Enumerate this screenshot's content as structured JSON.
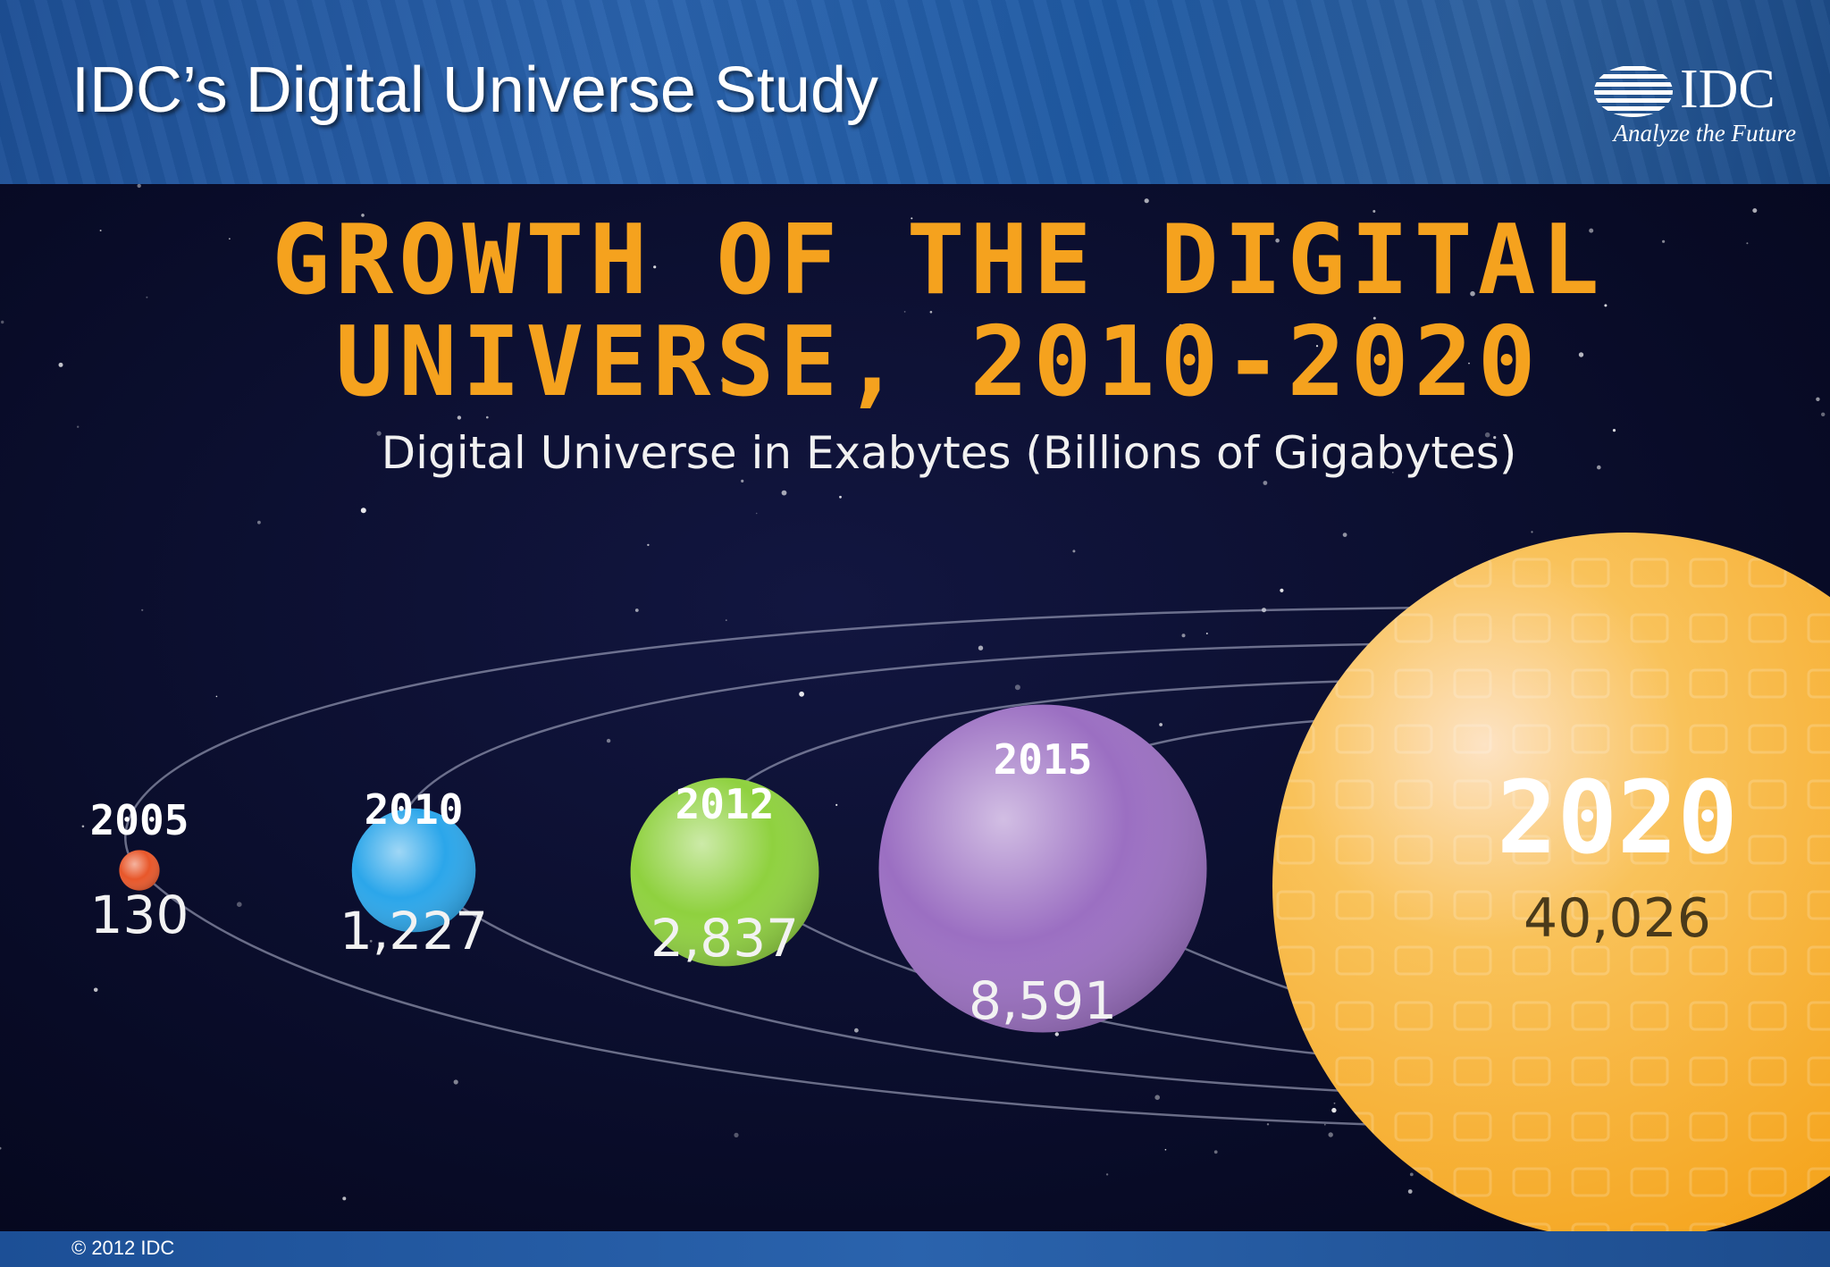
{
  "slide": {
    "title": "IDC’s Digital Universe Study",
    "copyright": "© 2012 IDC"
  },
  "logo": {
    "wordmark": "IDC",
    "tagline": "Analyze the Future"
  },
  "chart_data": {
    "type": "bubble",
    "title_line1": "GROWTH OF THE DIGITAL",
    "title_line2": "UNIVERSE, 2010-2020",
    "subtitle": "Digital Universe in Exabytes (Billions of Gigabytes)",
    "unit": "Exabytes",
    "points": [
      {
        "year": "2005",
        "label": "130",
        "value": 130,
        "color": "#e8572a"
      },
      {
        "year": "2010",
        "label": "1,227",
        "value": 1227,
        "color": "#2ba6ea"
      },
      {
        "year": "2012",
        "label": "2,837",
        "value": 2837,
        "color": "#8fd13f"
      },
      {
        "year": "2015",
        "label": "8,591",
        "value": 8591,
        "color": "#9b6fc2"
      },
      {
        "year": "2020",
        "label": "40,026",
        "value": 40026,
        "color": "#f7b02a"
      }
    ],
    "grid": false,
    "legend": "none"
  }
}
